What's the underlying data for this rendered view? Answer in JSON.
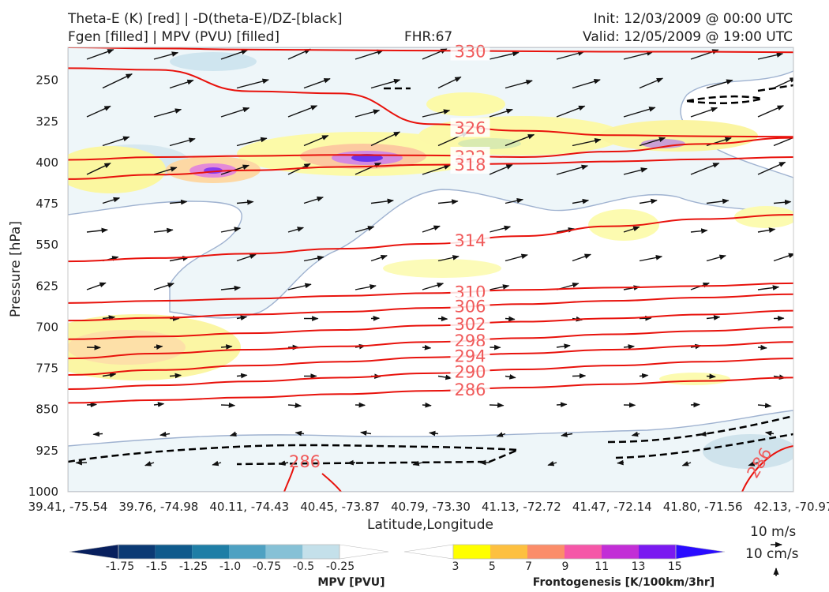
{
  "header": {
    "title_left_1": "Theta-E (K) [red] | -D(theta-E)/DZ-[black]",
    "title_left_2": "Fgen [filled] | MPV (PVU) [filled]",
    "title_center": "FHR:67",
    "title_right_1": "Init: 12/03/2009 @ 00:00 UTC",
    "title_right_2": "Valid: 12/05/2009 @ 19:00 UTC"
  },
  "reference": {
    "wind_label": "10 m/s",
    "vertical_label": "10 cm/s"
  },
  "chart_data": {
    "type": "contour",
    "xlabel": "Latitude,Longitude",
    "ylabel": "Pressure [hPa]",
    "ylim": [
      1000,
      190
    ],
    "x_ticks": [
      "39.41, -75.54",
      "39.76, -74.98",
      "40.11, -74.43",
      "40.45, -73.87",
      "40.79, -73.30",
      "41.13, -72.72",
      "41.47, -72.14",
      "41.80, -71.56",
      "42.13, -70.97"
    ],
    "y_ticks": [
      250,
      325,
      400,
      475,
      550,
      625,
      700,
      775,
      850,
      925,
      1000
    ],
    "theta_e_contours": [
      {
        "label": "330",
        "level": 330,
        "p": [
          190,
          192,
          194,
          195,
          196,
          197,
          198,
          198,
          199
        ]
      },
      {
        "label": "326",
        "level": 326,
        "p": [
          228,
          231,
          270,
          274,
          330,
          342,
          350,
          352,
          353
        ]
      },
      {
        "label": "322",
        "level": 322,
        "p": [
          395,
          390,
          388,
          386,
          387,
          390,
          380,
          366,
          355
        ]
      },
      {
        "label": "318",
        "level": 318,
        "p": [
          430,
          422,
          414,
          408,
          404,
          402,
          398,
          394,
          390
        ]
      },
      {
        "label": "314",
        "level": 314,
        "p": [
          580,
          574,
          566,
          557,
          548,
          534,
          516,
          503,
          495
        ]
      },
      {
        "label": "310",
        "level": 310,
        "p": [
          656,
          652,
          648,
          643,
          638,
          632,
          628,
          625,
          620
        ]
      },
      {
        "label": "306",
        "level": 306,
        "p": [
          688,
          683,
          677,
          672,
          665,
          658,
          652,
          646,
          640
        ]
      },
      {
        "label": "302",
        "level": 302,
        "p": [
          722,
          717,
          711,
          705,
          697,
          690,
          684,
          677,
          670
        ]
      },
      {
        "label": "298",
        "level": 298,
        "p": [
          757,
          748,
          741,
          735,
          727,
          720,
          713,
          707,
          700
        ]
      },
      {
        "label": "294",
        "level": 294,
        "p": [
          787,
          778,
          770,
          763,
          755,
          748,
          741,
          734,
          727
        ]
      },
      {
        "label": "290",
        "level": 290,
        "p": [
          813,
          806,
          799,
          792,
          784,
          777,
          770,
          763,
          757
        ]
      },
      {
        "label": "286",
        "level": 286,
        "p": [
          838,
          833,
          828,
          822,
          816,
          810,
          804,
          798,
          792
        ]
      }
    ],
    "theta_e_low_labels": [
      "286",
      "286"
    ],
    "colorbar_mpv": {
      "title": "MPV [PVU]",
      "ticks": [
        "-1.75",
        "-1.5",
        "-1.25",
        "-1.0",
        "-0.75",
        "-0.5",
        "-0.25"
      ],
      "colors": [
        "#08205e",
        "#0b3a74",
        "#0f5a8c",
        "#1f7ea6",
        "#4ea1c2",
        "#86c1d6",
        "#c4e0ea",
        "#ffffff"
      ]
    },
    "colorbar_fgen": {
      "title": "Frontogenesis [K/100km/3hr]",
      "ticks": [
        "3",
        "5",
        "7",
        "9",
        "11",
        "13",
        "15"
      ],
      "colors": [
        "#ffffff",
        "#ffff00",
        "#fdc040",
        "#fb8d6a",
        "#f557a8",
        "#c22ed6",
        "#7a1af0",
        "#2a0cff"
      ]
    }
  }
}
